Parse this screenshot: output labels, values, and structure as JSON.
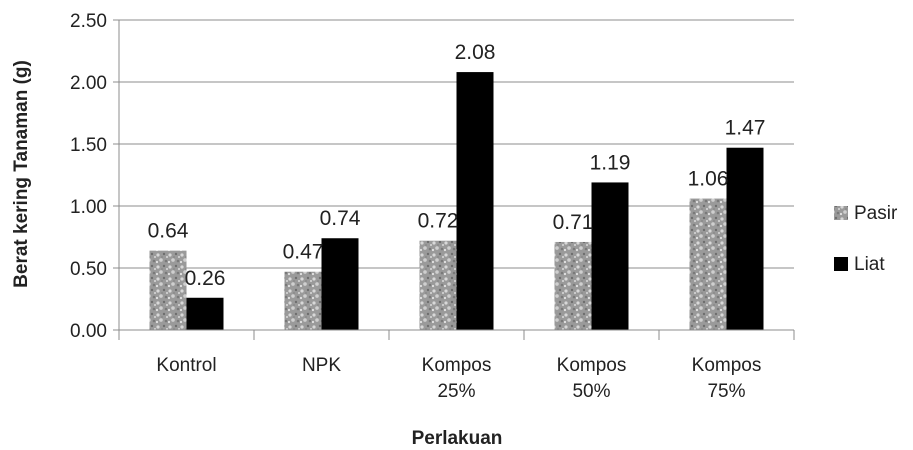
{
  "chart_data": {
    "type": "bar",
    "categories": [
      [
        "Kontrol"
      ],
      [
        "NPK"
      ],
      [
        "Kompos",
        "25%"
      ],
      [
        "Kompos",
        "50%"
      ],
      [
        "Kompos",
        "75%"
      ]
    ],
    "series": [
      {
        "name": "Pasir",
        "values": [
          0.64,
          0.47,
          0.72,
          0.71,
          1.06
        ],
        "labels": [
          "0.64",
          "0.47",
          "0.72",
          "0.71",
          "1.06"
        ],
        "color": "#a8a8a8",
        "pattern": "speckled"
      },
      {
        "name": "Liat",
        "values": [
          0.26,
          0.74,
          2.08,
          1.19,
          1.47
        ],
        "labels": [
          "0.26",
          "0.74",
          "2.08",
          "1.19",
          "1.47"
        ],
        "color": "#000000",
        "pattern": "solid"
      }
    ],
    "xlabel": "Perlakuan",
    "ylabel": "Berat kering Tanaman (g)",
    "ylim": [
      0,
      2.5
    ],
    "yticks": [
      "0.00",
      "0.50",
      "1.00",
      "1.50",
      "2.00",
      "2.50"
    ],
    "grid": true,
    "legend": "right"
  }
}
